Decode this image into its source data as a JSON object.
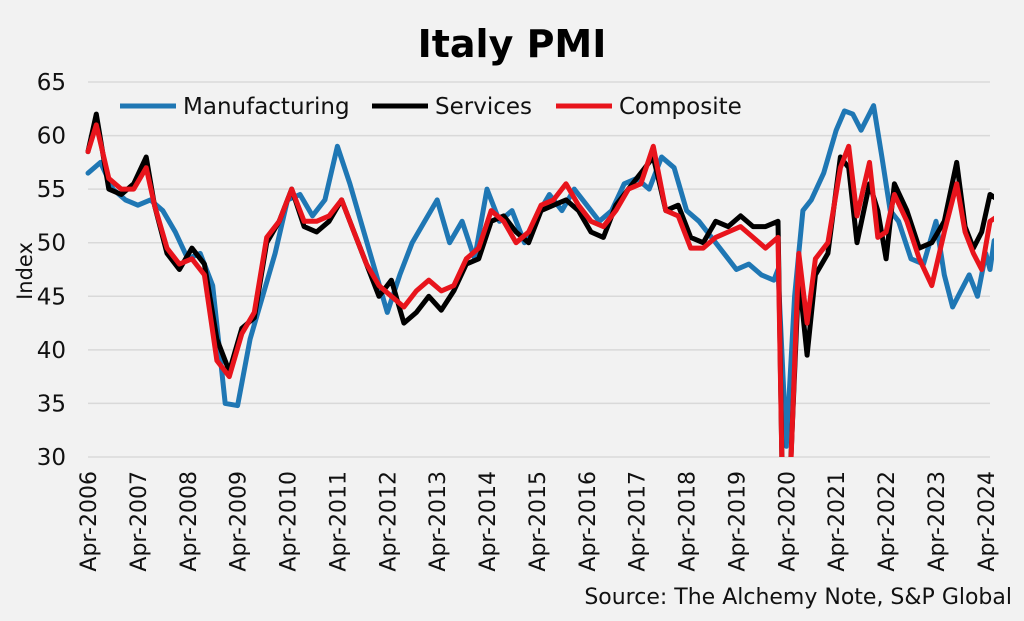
{
  "chart_data": {
    "type": "line",
    "title": "Italy PMI",
    "ylabel": "Index",
    "xlabel": "",
    "ylim": [
      30,
      65
    ],
    "yticks": [
      30,
      35,
      40,
      45,
      50,
      55,
      60,
      65
    ],
    "grid": "horizontal",
    "legend_position": "top",
    "xticks": [
      "Apr-2006",
      "Apr-2007",
      "Apr-2008",
      "Apr-2009",
      "Apr-2010",
      "Apr-2011",
      "Apr-2012",
      "Apr-2013",
      "Apr-2014",
      "Apr-2015",
      "Apr-2016",
      "Apr-2017",
      "Apr-2018",
      "Apr-2019",
      "Apr-2020",
      "Apr-2021",
      "Apr-2022",
      "Apr-2023",
      "Apr-2024"
    ],
    "x_start": "Apr-2006",
    "x_end": "May-2024",
    "source": "Source: The Alchemy Note, S&P Global",
    "series": [
      {
        "name": "Manufacturing",
        "color": "#1f77b4",
        "points": [
          [
            0,
            56.5
          ],
          [
            3,
            57.5
          ],
          [
            6,
            55.0
          ],
          [
            9,
            54.0
          ],
          [
            12,
            53.5
          ],
          [
            15,
            54.0
          ],
          [
            18,
            53.0
          ],
          [
            21,
            51.0
          ],
          [
            24,
            48.5
          ],
          [
            27,
            49.0
          ],
          [
            30,
            46.0
          ],
          [
            33,
            35.0
          ],
          [
            36,
            34.8
          ],
          [
            39,
            41.0
          ],
          [
            42,
            45.0
          ],
          [
            45,
            49.0
          ],
          [
            48,
            54.0
          ],
          [
            51,
            54.5
          ],
          [
            54,
            52.5
          ],
          [
            57,
            54.0
          ],
          [
            60,
            59.0
          ],
          [
            63,
            55.5
          ],
          [
            66,
            51.5
          ],
          [
            69,
            47.5
          ],
          [
            72,
            43.5
          ],
          [
            75,
            47.0
          ],
          [
            78,
            50.0
          ],
          [
            81,
            52.0
          ],
          [
            84,
            54.0
          ],
          [
            87,
            50.0
          ],
          [
            90,
            52.0
          ],
          [
            93,
            48.5
          ],
          [
            96,
            55.0
          ],
          [
            99,
            52.0
          ],
          [
            102,
            53.0
          ],
          [
            105,
            50.0
          ],
          [
            108,
            52.5
          ],
          [
            111,
            54.5
          ],
          [
            114,
            53.0
          ],
          [
            117,
            55.0
          ],
          [
            120,
            53.5
          ],
          [
            123,
            52.0
          ],
          [
            126,
            53.0
          ],
          [
            129,
            55.5
          ],
          [
            132,
            56.0
          ],
          [
            135,
            55.0
          ],
          [
            138,
            58.0
          ],
          [
            141,
            57.0
          ],
          [
            144,
            53.0
          ],
          [
            147,
            52.0
          ],
          [
            150,
            50.5
          ],
          [
            153,
            49.0
          ],
          [
            156,
            47.5
          ],
          [
            159,
            48.0
          ],
          [
            162,
            47.0
          ],
          [
            165,
            46.5
          ],
          [
            166,
            47.5
          ],
          [
            168,
            31.0
          ],
          [
            170,
            45.0
          ],
          [
            172,
            53.0
          ],
          [
            174,
            54.0
          ],
          [
            177,
            56.5
          ],
          [
            180,
            60.5
          ],
          [
            182,
            62.3
          ],
          [
            184,
            62.0
          ],
          [
            186,
            60.5
          ],
          [
            189,
            62.8
          ],
          [
            191,
            58.0
          ],
          [
            193,
            53.0
          ],
          [
            195,
            52.0
          ],
          [
            198,
            48.5
          ],
          [
            201,
            48.0
          ],
          [
            204,
            52.0
          ],
          [
            206,
            47.0
          ],
          [
            208,
            44.0
          ],
          [
            210,
            45.5
          ],
          [
            212,
            47.0
          ],
          [
            214,
            45.0
          ],
          [
            216,
            49.0
          ],
          [
            218,
            50.2
          ],
          [
            217,
            47.5
          ]
        ]
      },
      {
        "name": "Services",
        "color": "#000000",
        "points": [
          [
            0,
            58.5
          ],
          [
            2,
            62.0
          ],
          [
            5,
            55.0
          ],
          [
            8,
            54.5
          ],
          [
            11,
            55.5
          ],
          [
            14,
            58.0
          ],
          [
            16,
            53.5
          ],
          [
            19,
            49.0
          ],
          [
            22,
            47.5
          ],
          [
            25,
            49.5
          ],
          [
            28,
            48.0
          ],
          [
            31,
            41.0
          ],
          [
            34,
            38.0
          ],
          [
            37,
            42.0
          ],
          [
            40,
            43.0
          ],
          [
            43,
            50.0
          ],
          [
            46,
            52.0
          ],
          [
            49,
            55.0
          ],
          [
            52,
            51.5
          ],
          [
            55,
            51.0
          ],
          [
            58,
            52.0
          ],
          [
            61,
            54.0
          ],
          [
            64,
            51.0
          ],
          [
            67,
            48.0
          ],
          [
            70,
            45.0
          ],
          [
            73,
            46.5
          ],
          [
            76,
            42.5
          ],
          [
            79,
            43.5
          ],
          [
            82,
            45.0
          ],
          [
            85,
            43.7
          ],
          [
            88,
            45.5
          ],
          [
            91,
            48.0
          ],
          [
            94,
            48.5
          ],
          [
            97,
            52.0
          ],
          [
            100,
            52.5
          ],
          [
            103,
            51.0
          ],
          [
            106,
            50.0
          ],
          [
            109,
            53.0
          ],
          [
            112,
            53.5
          ],
          [
            115,
            54.0
          ],
          [
            118,
            53.0
          ],
          [
            121,
            51.0
          ],
          [
            124,
            50.5
          ],
          [
            127,
            53.5
          ],
          [
            130,
            55.0
          ],
          [
            133,
            56.5
          ],
          [
            136,
            58.0
          ],
          [
            139,
            53.0
          ],
          [
            142,
            53.5
          ],
          [
            145,
            50.5
          ],
          [
            148,
            50.0
          ],
          [
            151,
            52.0
          ],
          [
            154,
            51.5
          ],
          [
            157,
            52.5
          ],
          [
            160,
            51.5
          ],
          [
            163,
            51.5
          ],
          [
            166,
            52.0
          ],
          [
            167,
            28.0
          ],
          [
            169,
            29.0
          ],
          [
            171,
            47.0
          ],
          [
            173,
            39.5
          ],
          [
            175,
            47.0
          ],
          [
            178,
            49.0
          ],
          [
            181,
            58.0
          ],
          [
            183,
            57.0
          ],
          [
            185,
            50.0
          ],
          [
            188,
            55.5
          ],
          [
            190,
            53.0
          ],
          [
            192,
            48.5
          ],
          [
            194,
            55.5
          ],
          [
            197,
            53.0
          ],
          [
            200,
            49.5
          ],
          [
            203,
            50.0
          ],
          [
            206,
            52.0
          ],
          [
            209,
            57.5
          ],
          [
            211,
            51.5
          ],
          [
            213,
            49.5
          ],
          [
            215,
            51.0
          ],
          [
            217,
            54.5
          ],
          [
            219,
            54.0
          ]
        ]
      },
      {
        "name": "Composite",
        "color": "#e8141c",
        "points": [
          [
            0,
            58.5
          ],
          [
            2,
            61.0
          ],
          [
            5,
            56.0
          ],
          [
            8,
            55.0
          ],
          [
            11,
            55.0
          ],
          [
            14,
            57.0
          ],
          [
            16,
            53.5
          ],
          [
            19,
            49.5
          ],
          [
            22,
            48.0
          ],
          [
            25,
            48.5
          ],
          [
            28,
            47.0
          ],
          [
            31,
            39.0
          ],
          [
            34,
            37.5
          ],
          [
            37,
            41.5
          ],
          [
            40,
            43.5
          ],
          [
            43,
            50.5
          ],
          [
            46,
            52.0
          ],
          [
            49,
            55.0
          ],
          [
            52,
            52.0
          ],
          [
            55,
            52.0
          ],
          [
            58,
            52.5
          ],
          [
            61,
            54.0
          ],
          [
            64,
            51.0
          ],
          [
            67,
            48.0
          ],
          [
            70,
            46.0
          ],
          [
            73,
            45.0
          ],
          [
            76,
            44.0
          ],
          [
            79,
            45.5
          ],
          [
            82,
            46.5
          ],
          [
            85,
            45.5
          ],
          [
            88,
            46.0
          ],
          [
            91,
            48.5
          ],
          [
            94,
            49.5
          ],
          [
            97,
            53.0
          ],
          [
            100,
            52.0
          ],
          [
            103,
            50.0
          ],
          [
            106,
            51.0
          ],
          [
            109,
            53.5
          ],
          [
            112,
            54.0
          ],
          [
            115,
            55.5
          ],
          [
            118,
            53.5
          ],
          [
            121,
            52.0
          ],
          [
            124,
            51.5
          ],
          [
            127,
            53.0
          ],
          [
            130,
            55.0
          ],
          [
            133,
            55.5
          ],
          [
            136,
            59.0
          ],
          [
            139,
            53.0
          ],
          [
            142,
            52.5
          ],
          [
            145,
            49.5
          ],
          [
            148,
            49.5
          ],
          [
            151,
            50.5
          ],
          [
            154,
            51.0
          ],
          [
            157,
            51.5
          ],
          [
            160,
            50.5
          ],
          [
            163,
            49.5
          ],
          [
            166,
            50.5
          ],
          [
            167,
            28.0
          ],
          [
            169,
            28.5
          ],
          [
            171,
            49.0
          ],
          [
            173,
            42.5
          ],
          [
            175,
            48.5
          ],
          [
            178,
            50.0
          ],
          [
            181,
            57.0
          ],
          [
            183,
            59.0
          ],
          [
            185,
            52.5
          ],
          [
            188,
            57.5
          ],
          [
            190,
            50.5
          ],
          [
            192,
            51.0
          ],
          [
            194,
            54.5
          ],
          [
            197,
            52.0
          ],
          [
            200,
            48.5
          ],
          [
            203,
            46.0
          ],
          [
            206,
            51.0
          ],
          [
            209,
            55.5
          ],
          [
            211,
            51.0
          ],
          [
            213,
            49.0
          ],
          [
            215,
            47.5
          ],
          [
            217,
            52.0
          ],
          [
            219,
            52.5
          ]
        ]
      }
    ]
  }
}
